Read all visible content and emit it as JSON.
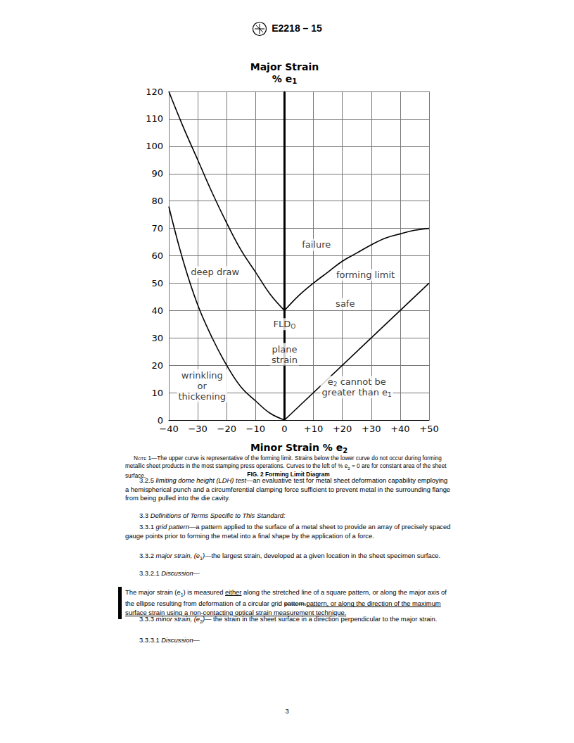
{
  "header": {
    "designation": "E2218 – 15"
  },
  "chart_data": {
    "type": "line",
    "ylabel": [
      [
        {
          "text": "Major Strain"
        }
      ],
      [
        {
          "text": "% e"
        },
        {
          "text": "1",
          "style": "sub"
        }
      ]
    ],
    "xlabel": [
      [
        {
          "text": "Minor Strain % e"
        },
        {
          "text": "2",
          "style": "sub"
        }
      ]
    ],
    "xlim": [
      -40,
      50
    ],
    "xticks": [
      {
        "value": -40,
        "label": "−40"
      },
      {
        "value": -30,
        "label": "−30"
      },
      {
        "value": -20,
        "label": "−20"
      },
      {
        "value": -10,
        "label": "−10"
      },
      0,
      {
        "value": 10,
        "label": "+10"
      },
      {
        "value": 20,
        "label": "+20"
      },
      {
        "value": 30,
        "label": "+30"
      },
      {
        "value": 40,
        "label": "+40"
      },
      {
        "value": 50,
        "label": "+50"
      }
    ],
    "ylim": [
      0,
      120
    ],
    "yticks": [
      0,
      10,
      20,
      30,
      40,
      50,
      60,
      70,
      80,
      90,
      100,
      110,
      120
    ],
    "grid": true,
    "series": [
      {
        "color": "#000000",
        "line_style": "solid",
        "x": [
          -40,
          -35,
          -30,
          -25,
          -20,
          -15,
          -10,
          -5,
          0
        ],
        "values": [
          120,
          107,
          95,
          83,
          72,
          62,
          54,
          46,
          40
        ]
      },
      {
        "color": "#000000",
        "line_style": "solid",
        "x": [
          0,
          5,
          10,
          15,
          20,
          25,
          30,
          35,
          40,
          45,
          50
        ],
        "values": [
          40,
          45.5,
          50,
          54,
          58,
          61,
          64,
          66.5,
          68,
          69.3,
          70
        ]
      },
      {
        "color": "#000000",
        "line_style": "solid",
        "x": [
          -40,
          -35,
          -30,
          -25,
          -20,
          -15,
          -10,
          -5,
          0
        ],
        "values": [
          78,
          58,
          42,
          30,
          20,
          12,
          7,
          2.5,
          0
        ]
      },
      {
        "color": "#000000",
        "line_style": "solid",
        "x": [
          0,
          50
        ],
        "values": [
          0,
          50
        ]
      },
      {
        "color": "#000000",
        "line_style": "thick",
        "x": [
          0,
          0
        ],
        "values": [
          0,
          120
        ]
      }
    ],
    "annotations": [
      {
        "x": 11,
        "y": 64,
        "lines": [
          [
            {
              "text": "failure"
            }
          ]
        ]
      },
      {
        "x": 28,
        "y": 53,
        "lines": [
          [
            {
              "text": "forming limit"
            }
          ]
        ]
      },
      {
        "x": 21,
        "y": 42.5,
        "lines": [
          [
            {
              "text": "safe"
            }
          ]
        ]
      },
      {
        "x": -24,
        "y": 54,
        "lines": [
          [
            {
              "text": "deep draw"
            }
          ]
        ]
      },
      {
        "x": 0,
        "y": 35,
        "lines": [
          [
            {
              "text": "FLD"
            },
            {
              "text": "O",
              "style": "sub"
            }
          ]
        ]
      },
      {
        "x": 0,
        "y": 24,
        "lines": [
          [
            {
              "text": "plane"
            }
          ],
          [
            {
              "text": "strain"
            }
          ]
        ]
      },
      {
        "x": -28.5,
        "y": 12.5,
        "lines": [
          [
            {
              "text": "wrinkling"
            }
          ],
          [
            {
              "text": "or"
            }
          ],
          [
            {
              "text": "thickening"
            }
          ]
        ]
      },
      {
        "x": 25,
        "y": 12,
        "lines": [
          [
            {
              "text": "e"
            },
            {
              "text": "2",
              "style": "sub"
            },
            {
              "text": " cannot be"
            }
          ],
          [
            {
              "text": "greater than e"
            },
            {
              "text": "1",
              "style": "sub"
            }
          ]
        ]
      }
    ]
  },
  "note": [
    {
      "text": "Note 1",
      "style": "smallcaps"
    },
    {
      "text": "—The upper curve is representative of the forming limit. Strains below the lower curve do not occur during forming metallic sheet products in the most stamping press operations. Curves to the left of % e"
    },
    {
      "text": "2",
      "style": "sub"
    },
    {
      "text": " = 0 are for constant area of the sheet surface."
    }
  ],
  "caption": "FIG. 2 Forming Limit Diagram",
  "paragraphs": [
    {
      "number": "3.2.5",
      "segments": [
        {
          "text": "limiting dome height (LDH) test",
          "style": "italic"
        },
        {
          "text": "—an evaluative test for metal sheet deformation capability employing a hemispherical punch and a circumferential clamping force sufficient to prevent metal in the surrounding flange from being pulled into the die cavity."
        }
      ]
    },
    {
      "number": "3.3",
      "segments": [
        {
          "text": "Definitions of Terms Specific to This Standard:",
          "style": "italic"
        }
      ]
    },
    {
      "number": "3.3.1",
      "segments": [
        {
          "text": "grid pattern",
          "style": "italic"
        },
        {
          "text": "—a pattern applied to the surface of a metal sheet to provide an array of precisely spaced gauge points prior to forming the metal into a final shape by the application of a force."
        }
      ]
    },
    {
      "number": "3.3.2",
      "segments": [
        {
          "text": "major strain, (e",
          "style": "italic"
        },
        {
          "text": "1",
          "style": "sub"
        },
        {
          "text": ")",
          "style": "italic"
        },
        {
          "text": "—the largest strain, developed at a given location in the sheet specimen surface."
        }
      ]
    },
    {
      "number": "3.3.2.1",
      "segments": [
        {
          "text": "Discussion—",
          "style": "italic"
        }
      ]
    },
    {
      "number": null,
      "segments": [
        {
          "text": "The major strain (e"
        },
        {
          "text": "1",
          "style": "sub"
        },
        {
          "text": ") is measured "
        },
        {
          "text": "either",
          "style": "underline"
        },
        {
          "text": " along the stretched line of a square pattern, or along the major axis of the ellipse resulting from deformation of a circular grid "
        },
        {
          "text": "pattern.",
          "style": "strike"
        },
        {
          "text": "pattern, or along the direction of the maximum surface strain using a non-contacting optical strain measurement technique.",
          "style": "underline"
        }
      ]
    },
    {
      "number": "3.3.3",
      "segments": [
        {
          "text": "minor strain, (e",
          "style": "italic"
        },
        {
          "text": "2",
          "style": "sub"
        },
        {
          "text": ")",
          "style": "italic"
        },
        {
          "text": "— the strain in the sheet surface in a direction perpendicular to the major strain."
        }
      ]
    },
    {
      "number": "3.3.3.1",
      "segments": [
        {
          "text": "Discussion—",
          "style": "italic"
        }
      ]
    }
  ],
  "page_number": "3"
}
